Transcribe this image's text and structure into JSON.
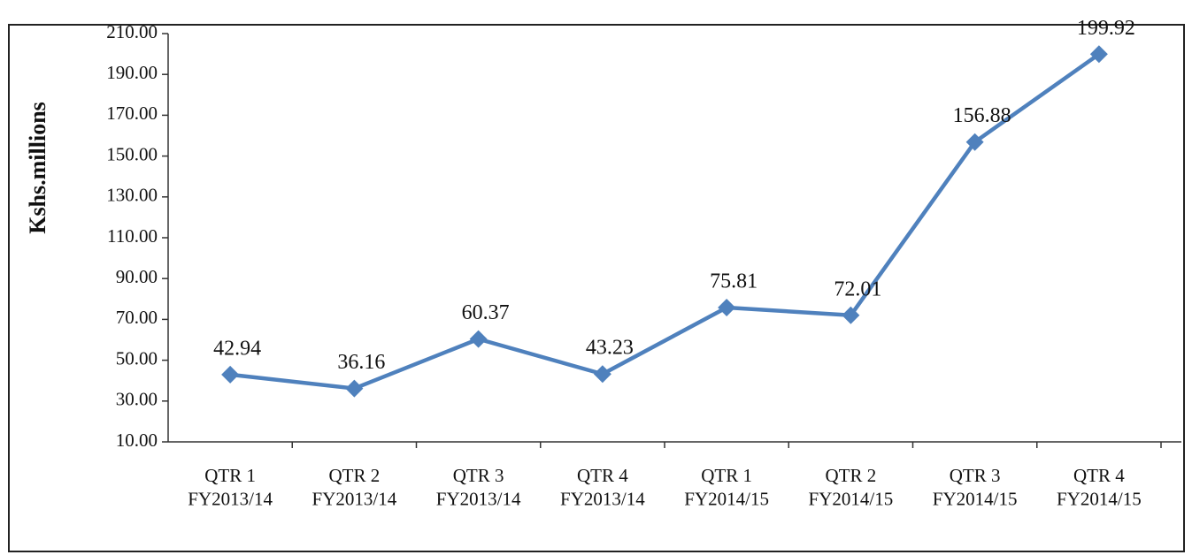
{
  "chart_data": {
    "type": "line",
    "y_label": "Kshs.millions",
    "categories": [
      "QTR 1\nFY2013/14",
      "QTR 2\nFY2013/14",
      "QTR 3\nFY2013/14",
      "QTR 4\nFY2013/14",
      "QTR 1\nFY2014/15",
      "QTR 2\nFY2014/15",
      "QTR 3\nFY2014/15",
      "QTR 4\nFY2014/15"
    ],
    "series": [
      {
        "color": "#4f81bd",
        "values": [
          42.94,
          36.16,
          60.37,
          43.23,
          75.81,
          72.01,
          156.88,
          199.92
        ]
      }
    ],
    "ylim": [
      10,
      210
    ],
    "yticks": [
      {
        "value": 10,
        "label": "10.00"
      },
      {
        "value": 30,
        "label": "30.00"
      },
      {
        "value": 50,
        "label": "50.00"
      },
      {
        "value": 70,
        "label": "70.00"
      },
      {
        "value": 90,
        "label": "90.00"
      },
      {
        "value": 110,
        "label": "110.00"
      },
      {
        "value": 130,
        "label": "130.00"
      },
      {
        "value": 150,
        "label": "150.00"
      },
      {
        "value": 170,
        "label": "170.00"
      },
      {
        "value": 190,
        "label": "190.00"
      },
      {
        "value": 210,
        "label": "210.00"
      }
    ],
    "grid": false
  }
}
